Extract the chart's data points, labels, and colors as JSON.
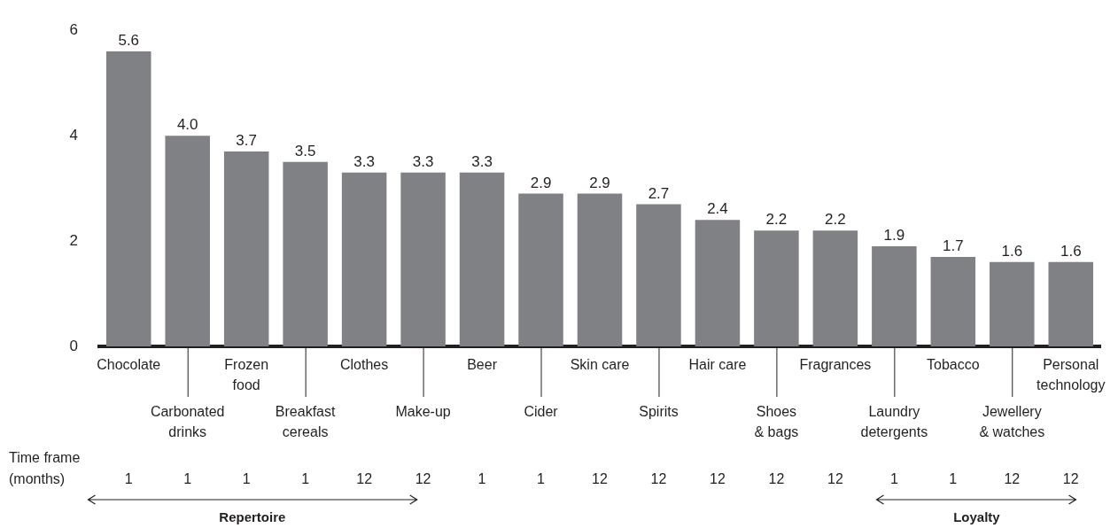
{
  "chart_data": {
    "type": "bar",
    "categories": [
      "Chocolate",
      "Carbonated drinks",
      "Frozen food",
      "Breakfast cereals",
      "Clothes",
      "Make-up",
      "Beer",
      "Cider",
      "Skin care",
      "Spirits",
      "Hair care",
      "Shoes & bags",
      "Fragrances",
      "Laundry detergents",
      "Tobacco",
      "Jewellery & watches",
      "Personal technology"
    ],
    "values": [
      5.6,
      4.0,
      3.7,
      3.5,
      3.3,
      3.3,
      3.3,
      2.9,
      2.9,
      2.7,
      2.4,
      2.2,
      2.2,
      1.9,
      1.7,
      1.6,
      1.6
    ],
    "value_labels": [
      "5.6",
      "4.0",
      "3.7",
      "3.5",
      "3.3",
      "3.3",
      "3.3",
      "2.9",
      "2.9",
      "2.7",
      "2.4",
      "2.2",
      "2.2",
      "1.9",
      "1.7",
      "1.6",
      "1.6"
    ],
    "color": "#808184",
    "ylim": [
      0,
      6
    ],
    "yticks": [
      0,
      2,
      4,
      6
    ],
    "grid": false,
    "legend": false,
    "annotations": [
      "Time frame (months)",
      "1",
      "1",
      "1",
      "1",
      "12",
      "12",
      "1",
      "1",
      "12",
      "12",
      "12",
      "12",
      "12",
      "1",
      "1",
      "12",
      "12",
      "Repertoire",
      "Loyalty"
    ]
  }
}
